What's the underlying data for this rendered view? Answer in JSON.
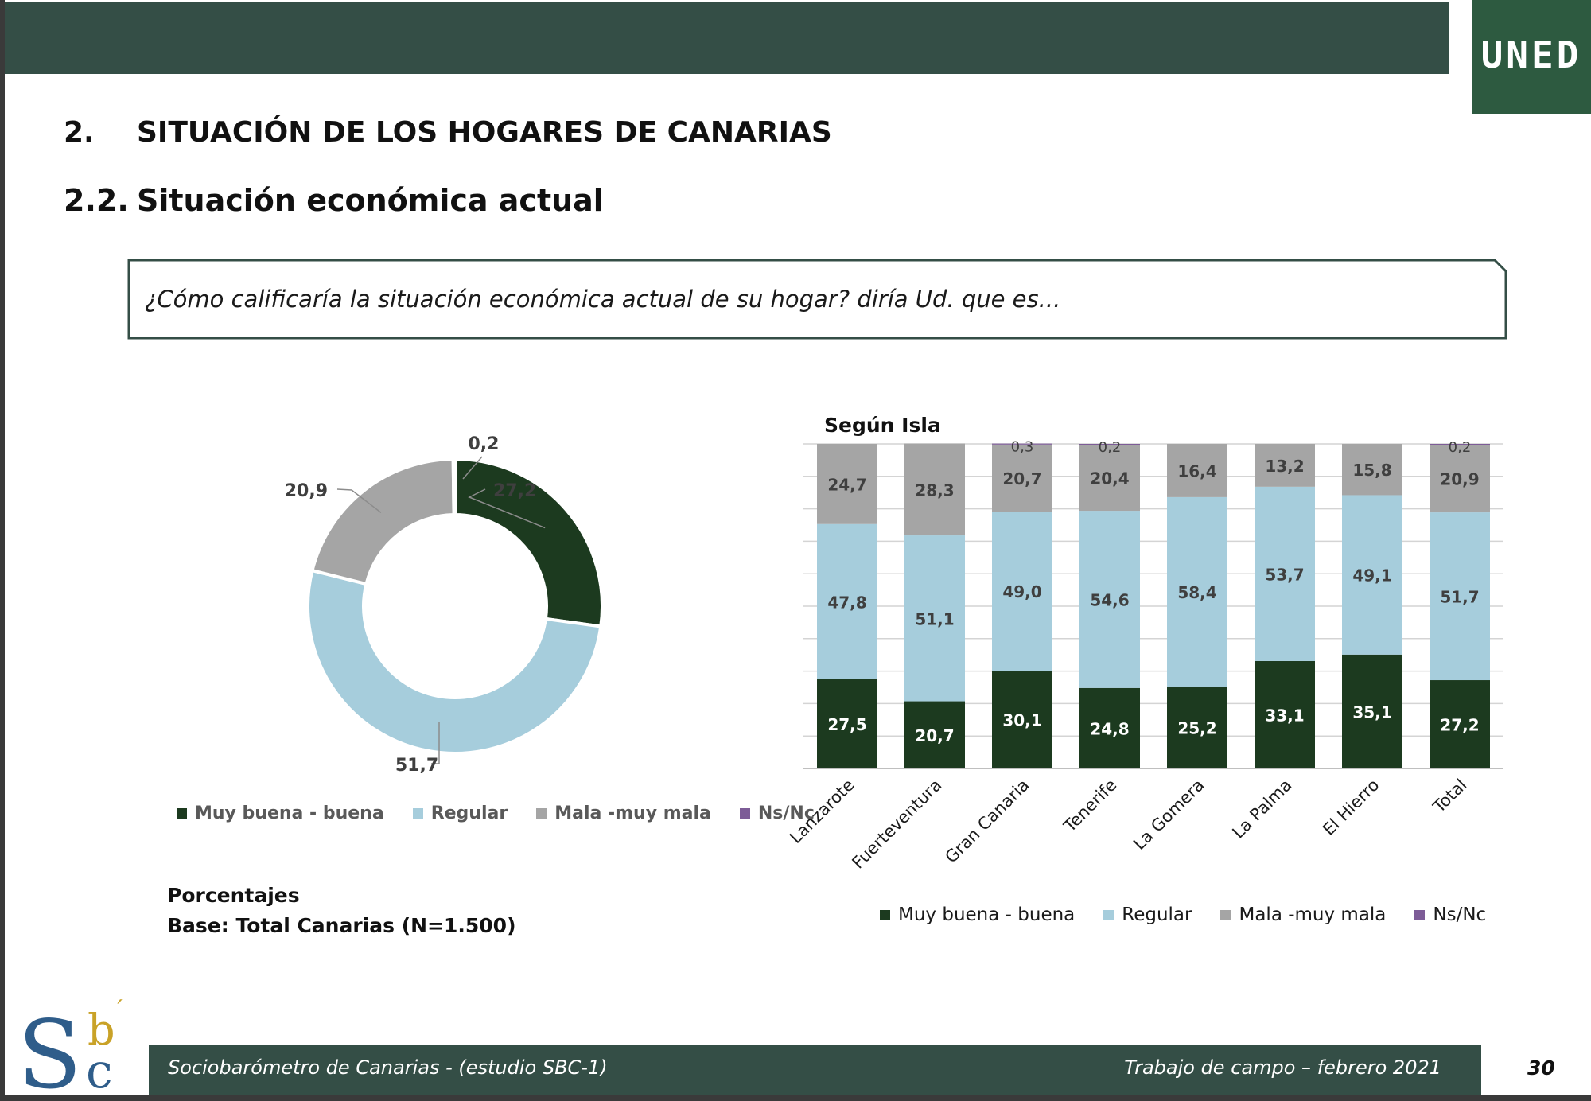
{
  "header": {
    "logo_text": "UNED",
    "section_number": "2.",
    "section_title": "SITUACIÓN DE LOS HOGARES DE CANARIAS",
    "subsection_number": "2.2.",
    "subsection_title": "Situación económica actual"
  },
  "question": "¿Cómo calificaría la situación económica actual de su hogar? diría Ud. que es...",
  "colors": {
    "muy_buena": "#1c3a1f",
    "regular": "#a6cddc",
    "mala": "#a5a5a5",
    "nsnc": "#7d5c97",
    "band": "#344e46",
    "logo_bg": "#2d5a40"
  },
  "chart_data": [
    {
      "type": "pie",
      "donut": true,
      "labels": [
        "Muy buena - buena",
        "Regular",
        "Mala -muy mala",
        "Ns/Nc"
      ],
      "values": [
        27.2,
        51.7,
        20.9,
        0.2
      ],
      "value_labels": [
        "27,2",
        "51,7",
        "20,9",
        "0,2"
      ],
      "legend_labels": [
        "Muy buena - buena",
        "Regular",
        "Mala -muy mala",
        "Ns/Nc"
      ],
      "legend_position": "bottom"
    },
    {
      "type": "bar",
      "stacked": true,
      "title": "Según Isla",
      "categories": [
        "Lanzarote",
        "Fuerteventura",
        "Gran Canaria",
        "Tenerife",
        "La Gomera",
        "La Palma",
        "El Hierro",
        "Total"
      ],
      "ylim": [
        0,
        100
      ],
      "grid": true,
      "legend_position": "bottom",
      "series": [
        {
          "name": "Muy buena - buena",
          "values": [
            27.5,
            20.7,
            30.1,
            24.8,
            25.2,
            33.1,
            35.1,
            27.2
          ],
          "labels": [
            "27,5",
            "20,7",
            "30,1",
            "24,8",
            "25,2",
            "33,1",
            "35,1",
            "27,2"
          ]
        },
        {
          "name": "Regular",
          "values": [
            47.8,
            51.1,
            49.0,
            54.6,
            58.4,
            53.7,
            49.1,
            51.7
          ],
          "labels": [
            "47,8",
            "51,1",
            "49,0",
            "54,6",
            "58,4",
            "53,7",
            "49,1",
            "51,7"
          ]
        },
        {
          "name": "Mala -muy mala",
          "values": [
            24.7,
            28.3,
            20.7,
            20.4,
            16.4,
            13.2,
            15.8,
            20.9
          ],
          "labels": [
            "24,7",
            "28,3",
            "20,7",
            "20,4",
            "16,4",
            "13,2",
            "15,8",
            "20,9"
          ]
        },
        {
          "name": "Ns/Nc",
          "values": [
            0,
            0,
            0.3,
            0.2,
            0,
            0,
            0,
            0.2
          ],
          "labels": [
            "",
            "",
            "0,3",
            "0,2",
            "",
            "",
            "",
            "0,2"
          ]
        }
      ]
    }
  ],
  "notes": {
    "line1": "Porcentajes",
    "line2": "Base: Total  Canarias (N=1.500)"
  },
  "footer": {
    "left": "Sociobarómetro de Canarias -  (estudio SBC-1)",
    "right": "Trabajo de campo – febrero 2021",
    "page_number": "30",
    "logo_text": "Sbc"
  }
}
